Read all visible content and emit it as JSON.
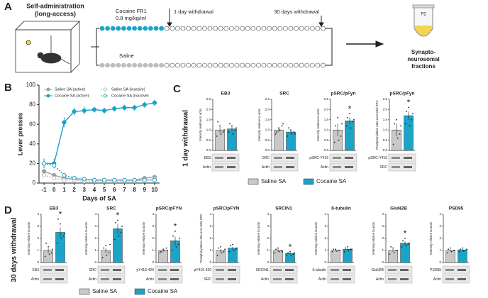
{
  "figure": {
    "panel_labels": [
      "A",
      "B",
      "C",
      "D"
    ],
    "a": {
      "title_lines": [
        "Self-administration",
        "(long-access)"
      ],
      "cocaine_label": [
        "Cocaine FR1",
        "0.8 mg/kg/inf"
      ],
      "saline_label": "Saline",
      "withdrawal_1": "1 day withdrawal",
      "withdrawal_30": "30 days withdrawal",
      "tube_label": "P2",
      "fraction_lines": [
        "Synapto-",
        "neurosomal",
        "fractions"
      ]
    },
    "c_label": "1 day withdrawal",
    "d_label": "30 days withdrawal"
  },
  "chart_data": [
    {
      "type": "line",
      "xlabel": "Days of SA",
      "ylabel": "Lever presses",
      "x": [
        -1,
        0,
        1,
        2,
        3,
        4,
        5,
        6,
        7,
        8,
        9,
        10
      ],
      "xlim": [
        -1.5,
        10.5
      ],
      "xticks": [
        -1,
        0,
        1,
        2,
        3,
        4,
        5,
        6,
        7,
        8,
        9,
        10
      ],
      "ylim": [
        0,
        100
      ],
      "yticks": [
        0,
        20,
        40,
        60,
        80,
        100
      ],
      "series": [
        {
          "name": "Saline SA (active)",
          "color": "#9e9e9e",
          "line_style": "solid",
          "values": [
            12,
            8,
            5,
            4,
            4,
            3,
            3,
            3,
            3,
            3,
            5,
            6
          ]
        },
        {
          "name": "Saline SA (inactive)",
          "color": "#bdbdbd",
          "line_style": "dashed",
          "values": [
            8,
            5,
            3,
            3,
            2,
            2,
            2,
            2,
            2,
            2,
            3,
            4
          ]
        },
        {
          "name": "Cocaine SA (active)",
          "color": "#1ca3c8",
          "line_style": "solid",
          "values": [
            20,
            20,
            62,
            73,
            74,
            75,
            74,
            76,
            77,
            77,
            80,
            82
          ],
          "errors": [
            5,
            5,
            5,
            4,
            4,
            3,
            3,
            3,
            3,
            3,
            3,
            3
          ]
        },
        {
          "name": "Cocaine SA (inactive)",
          "color": "#1ca3c8",
          "line_style": "dashed",
          "values": [
            20,
            18,
            8,
            5,
            4,
            3,
            3,
            3,
            3,
            3,
            3,
            3
          ]
        }
      ]
    },
    {
      "type": "bar",
      "title": "EB3",
      "ylabel": "Intensity relative to actin",
      "blots": [
        "EB3",
        "Actin"
      ],
      "ylim": [
        0,
        2.5
      ],
      "yticks": [
        {
          "value": 0,
          "label": "0.0"
        },
        {
          "value": 0.5,
          "label": "0.5"
        },
        {
          "value": 1,
          "label": "1.0"
        },
        {
          "value": 1.5,
          "label": "1.5"
        },
        {
          "value": 2,
          "label": "2.0"
        },
        {
          "value": 2.5,
          "label": "2.5"
        }
      ],
      "series": [
        {
          "name": "Saline SA",
          "color": "#c8c8c8",
          "values": [
            1.0
          ],
          "errors": [
            0.15
          ],
          "points": [
            0.7,
            1.2,
            0.9,
            1.4,
            0.8,
            1.0
          ]
        },
        {
          "name": "Cocaine SA",
          "color": "#1ca3c8",
          "values": [
            1.05
          ],
          "errors": [
            0.1
          ],
          "points": [
            0.9,
            1.2,
            1.0,
            1.3,
            0.8,
            1.1
          ]
        }
      ]
    },
    {
      "type": "bar",
      "title": "SRC",
      "ylabel": "Intensity relative to actin",
      "blots": [
        "SRC",
        "Actin"
      ],
      "ylim": [
        0,
        2.5
      ],
      "yticks": [
        {
          "value": 0,
          "label": "0.0"
        },
        {
          "value": 0.5,
          "label": "0.5"
        },
        {
          "value": 1,
          "label": "1.0"
        },
        {
          "value": 1.5,
          "label": "1.5"
        },
        {
          "value": 2,
          "label": "2.0"
        },
        {
          "value": 2.5,
          "label": "2.5"
        }
      ],
      "series": [
        {
          "color": "#c8c8c8",
          "values": [
            1.0
          ],
          "errors": [
            0.1
          ],
          "points": [
            0.8,
            1.1,
            1.2,
            0.9,
            1.0,
            1.3
          ]
        },
        {
          "color": "#1ca3c8",
          "values": [
            0.9
          ],
          "errors": [
            0.08
          ],
          "points": [
            0.7,
            1.0,
            0.9,
            1.1,
            0.8,
            0.8
          ]
        }
      ]
    },
    {
      "type": "bar",
      "title": "pSRC/pFyn",
      "ylabel": "Intensity relative to actin",
      "blots": [
        "pSRC-Y416",
        "Actin"
      ],
      "annotation": "*",
      "ylim": [
        0,
        2.5
      ],
      "yticks": [
        {
          "value": 0,
          "label": "0.0"
        },
        {
          "value": 0.5,
          "label": "0.5"
        },
        {
          "value": 1,
          "label": "1.0"
        },
        {
          "value": 1.5,
          "label": "1.5"
        },
        {
          "value": 2,
          "label": "2.0"
        },
        {
          "value": 2.5,
          "label": "2.5"
        }
      ],
      "series": [
        {
          "color": "#c8c8c8",
          "values": [
            1.0
          ],
          "errors": [
            0.3
          ],
          "points": [
            0.4,
            1.6,
            0.7,
            1.2,
            0.5,
            1.3
          ]
        },
        {
          "color": "#1ca3c8",
          "values": [
            1.45
          ],
          "errors": [
            0.15
          ],
          "points": [
            1.2,
            1.8,
            1.4,
            1.6,
            1.1,
            1.5
          ]
        }
      ]
    },
    {
      "type": "bar",
      "title": "pSRC/pFyn",
      "ylabel": "Phosphorylation ratio over total SRC",
      "blots": [
        "pSRC-Y416",
        "SRC"
      ],
      "annotation": "*",
      "ylim": [
        0,
        2.5
      ],
      "yticks": [
        {
          "value": 0,
          "label": "0.0"
        },
        {
          "value": 0.5,
          "label": "0.5"
        },
        {
          "value": 1,
          "label": "1.0"
        },
        {
          "value": 1.5,
          "label": "1.5"
        },
        {
          "value": 2,
          "label": "2.0"
        },
        {
          "value": 2.5,
          "label": "2.5"
        }
      ],
      "series": [
        {
          "color": "#c8c8c8",
          "values": [
            1.0
          ],
          "errors": [
            0.3
          ],
          "points": [
            0.3,
            1.5,
            0.8,
            1.3,
            0.6,
            1.2
          ]
        },
        {
          "color": "#1ca3c8",
          "values": [
            1.7
          ],
          "errors": [
            0.2
          ],
          "points": [
            1.3,
            2.1,
            1.5,
            1.9,
            1.2,
            1.8
          ]
        }
      ]
    },
    {
      "type": "bar",
      "title": "EB3",
      "ylabel": "Intensity relative to actin",
      "blots": [
        "EB3",
        "Actin"
      ],
      "annotation": "*",
      "ylim": [
        0,
        4
      ],
      "yticks": [
        0,
        1,
        2,
        3,
        4
      ],
      "series": [
        {
          "name": "Saline SA",
          "color": "#c8c8c8",
          "values": [
            1.0
          ],
          "errors": [
            0.2
          ],
          "points": [
            0.5,
            1.3,
            0.8,
            1.6,
            0.7,
            1.1
          ]
        },
        {
          "name": "Cocaine SA",
          "color": "#1ca3c8",
          "values": [
            2.5
          ],
          "errors": [
            0.4
          ],
          "points": [
            1.6,
            3.2,
            2.2,
            3.6,
            2.0,
            2.4
          ]
        }
      ]
    },
    {
      "type": "bar",
      "title": "SRC",
      "ylabel": "Intensity relative to actin",
      "blots": [
        "SRC",
        "Actin"
      ],
      "annotation": "*",
      "ylim": [
        0,
        4
      ],
      "yticks": [
        0,
        1,
        2,
        3,
        4
      ],
      "series": [
        {
          "color": "#c8c8c8",
          "values": [
            1.0
          ],
          "errors": [
            0.2
          ],
          "points": [
            0.4,
            1.4,
            0.8,
            1.2,
            0.6,
            1.5
          ]
        },
        {
          "color": "#1ca3c8",
          "values": [
            2.8
          ],
          "errors": [
            0.4
          ],
          "points": [
            1.9,
            3.5,
            2.5,
            3.3,
            2.2,
            3.0
          ]
        }
      ]
    },
    {
      "type": "bar",
      "title": "pSRC/pFYN",
      "ylabel": "Intensity relative to actin",
      "blots": [
        "pY416-420",
        "Actin"
      ],
      "annotation": "*",
      "ylim": [
        0,
        4
      ],
      "yticks": [
        0,
        1,
        2,
        3,
        4
      ],
      "series": [
        {
          "color": "#c8c8c8",
          "values": [
            1.0
          ],
          "errors": [
            0.1
          ],
          "points": [
            0.8,
            1.1,
            1.2,
            0.9,
            1.0,
            1.0
          ]
        },
        {
          "color": "#1ca3c8",
          "values": [
            1.8
          ],
          "errors": [
            0.35
          ],
          "points": [
            1.0,
            2.6,
            1.5,
            2.2,
            1.3,
            2.0
          ]
        }
      ]
    },
    {
      "type": "bar",
      "title": "pSRC/pFYN",
      "ylabel": "Phosphorylation ratio over total SRC",
      "blots": [
        "pY416-420",
        "SRC"
      ],
      "ylim": [
        0,
        4
      ],
      "yticks": [
        0,
        1,
        2,
        3,
        4
      ],
      "series": [
        {
          "color": "#c8c8c8",
          "values": [
            1.0
          ],
          "errors": [
            0.15
          ],
          "points": [
            0.6,
            1.3,
            0.9,
            1.2,
            0.8,
            1.1
          ]
        },
        {
          "color": "#1ca3c8",
          "values": [
            1.2
          ],
          "errors": [
            0.12
          ],
          "points": [
            0.9,
            1.5,
            1.1,
            1.4,
            1.0,
            1.2
          ]
        }
      ]
    },
    {
      "type": "bar",
      "title": "SRCIN1",
      "ylabel": "Intensity relative to actin",
      "blots": [
        "SRCIN1",
        "Actin"
      ],
      "annotation": "*",
      "ylim": [
        0,
        4
      ],
      "yticks": [
        0,
        1,
        2,
        3,
        4
      ],
      "series": [
        {
          "color": "#c8c8c8",
          "values": [
            1.0
          ],
          "errors": [
            0.1
          ],
          "points": [
            0.8,
            1.2,
            1.0,
            1.1,
            0.9,
            0.9
          ]
        },
        {
          "color": "#1ca3c8",
          "values": [
            0.75
          ],
          "errors": [
            0.08
          ],
          "points": [
            0.6,
            0.9,
            0.7,
            0.8,
            0.6,
            0.8
          ]
        }
      ]
    },
    {
      "type": "bar",
      "title": "ß-tubulin",
      "ylabel": "Intensity relative to actin",
      "blots": [
        "ß-tubulin",
        "Actin"
      ],
      "ylim": [
        0,
        4
      ],
      "yticks": [
        0,
        1,
        2,
        3,
        4
      ],
      "series": [
        {
          "color": "#c8c8c8",
          "values": [
            1.0
          ],
          "errors": [
            0.05
          ],
          "points": [
            0.9,
            1.1,
            1.0,
            1.1,
            0.95,
            1.0
          ]
        },
        {
          "color": "#1ca3c8",
          "values": [
            1.1
          ],
          "errors": [
            0.08
          ],
          "points": [
            0.9,
            1.3,
            1.1,
            1.2,
            1.0,
            1.1
          ]
        }
      ]
    },
    {
      "type": "bar",
      "title": "GluN2B",
      "ylabel": "Intensity relative to actin",
      "blots": [
        "GluN2B",
        "Actin"
      ],
      "annotation": "*",
      "ylim": [
        0,
        4
      ],
      "yticks": [
        0,
        1,
        2,
        3,
        4
      ],
      "series": [
        {
          "color": "#c8c8c8",
          "values": [
            1.0
          ],
          "errors": [
            0.1
          ],
          "points": [
            0.7,
            1.2,
            1.0,
            1.3,
            0.8,
            1.0
          ]
        },
        {
          "color": "#1ca3c8",
          "values": [
            1.6
          ],
          "errors": [
            0.15
          ],
          "points": [
            1.3,
            2.0,
            1.5,
            1.8,
            1.4,
            1.6
          ]
        }
      ]
    },
    {
      "type": "bar",
      "title": "PSD95",
      "ylabel": "Intensity relative to actin",
      "blots": [
        "PSD95",
        "Actin"
      ],
      "ylim": [
        0,
        4
      ],
      "yticks": [
        0,
        1,
        2,
        3,
        4
      ],
      "series": [
        {
          "color": "#c8c8c8",
          "values": [
            1.0
          ],
          "errors": [
            0.08
          ],
          "points": [
            0.8,
            1.2,
            1.0,
            1.1,
            0.9,
            1.0
          ]
        },
        {
          "color": "#1ca3c8",
          "values": [
            1.05
          ],
          "errors": [
            0.07
          ],
          "points": [
            0.9,
            1.2,
            1.0,
            1.1,
            0.95,
            1.1
          ]
        }
      ]
    }
  ]
}
